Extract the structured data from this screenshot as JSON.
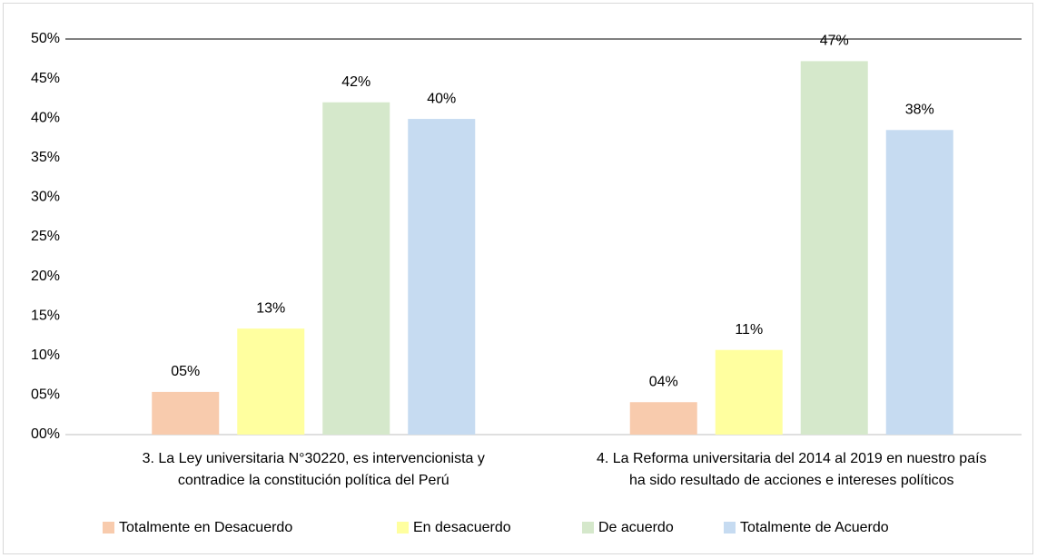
{
  "chart_data": {
    "type": "bar",
    "categories": [
      "3. La Ley universitaria N°30220, es intervencionista y\ncontradice la constitución política del Perú",
      "4. La Reforma universitaria del 2014 al 2019 en nuestro país\nha sido resultado de acciones e intereses políticos"
    ],
    "series": [
      {
        "name": "Totalmente en Desacuerdo",
        "color": "#f8cbad",
        "values": [
          5.4,
          4.1
        ],
        "value_labels": [
          "05%",
          "04%"
        ]
      },
      {
        "name": "En desacuerdo",
        "color": "#ffff9f",
        "values": [
          13.4,
          10.7
        ],
        "value_labels": [
          "13%",
          "11%"
        ]
      },
      {
        "name": "De acuerdo",
        "color": "#d5e8cb",
        "values": [
          42.0,
          47.2
        ],
        "value_labels": [
          "42%",
          "47%"
        ]
      },
      {
        "name": "Totalmente de Acuerdo",
        "color": "#c6dbf1",
        "values": [
          39.9,
          38.5
        ],
        "value_labels": [
          "40%",
          "38%"
        ]
      }
    ],
    "ylim": [
      0,
      50
    ],
    "yticks": [
      {
        "value": 0,
        "label": "00%"
      },
      {
        "value": 5,
        "label": "05%"
      },
      {
        "value": 10,
        "label": "10%"
      },
      {
        "value": 15,
        "label": "15%"
      },
      {
        "value": 20,
        "label": "20%"
      },
      {
        "value": 25,
        "label": "25%"
      },
      {
        "value": 30,
        "label": "30%"
      },
      {
        "value": 35,
        "label": "35%"
      },
      {
        "value": 40,
        "label": "40%"
      },
      {
        "value": 45,
        "label": "45%"
      },
      {
        "value": 50,
        "label": "50%"
      }
    ],
    "grid": false,
    "legend": "bottom"
  }
}
